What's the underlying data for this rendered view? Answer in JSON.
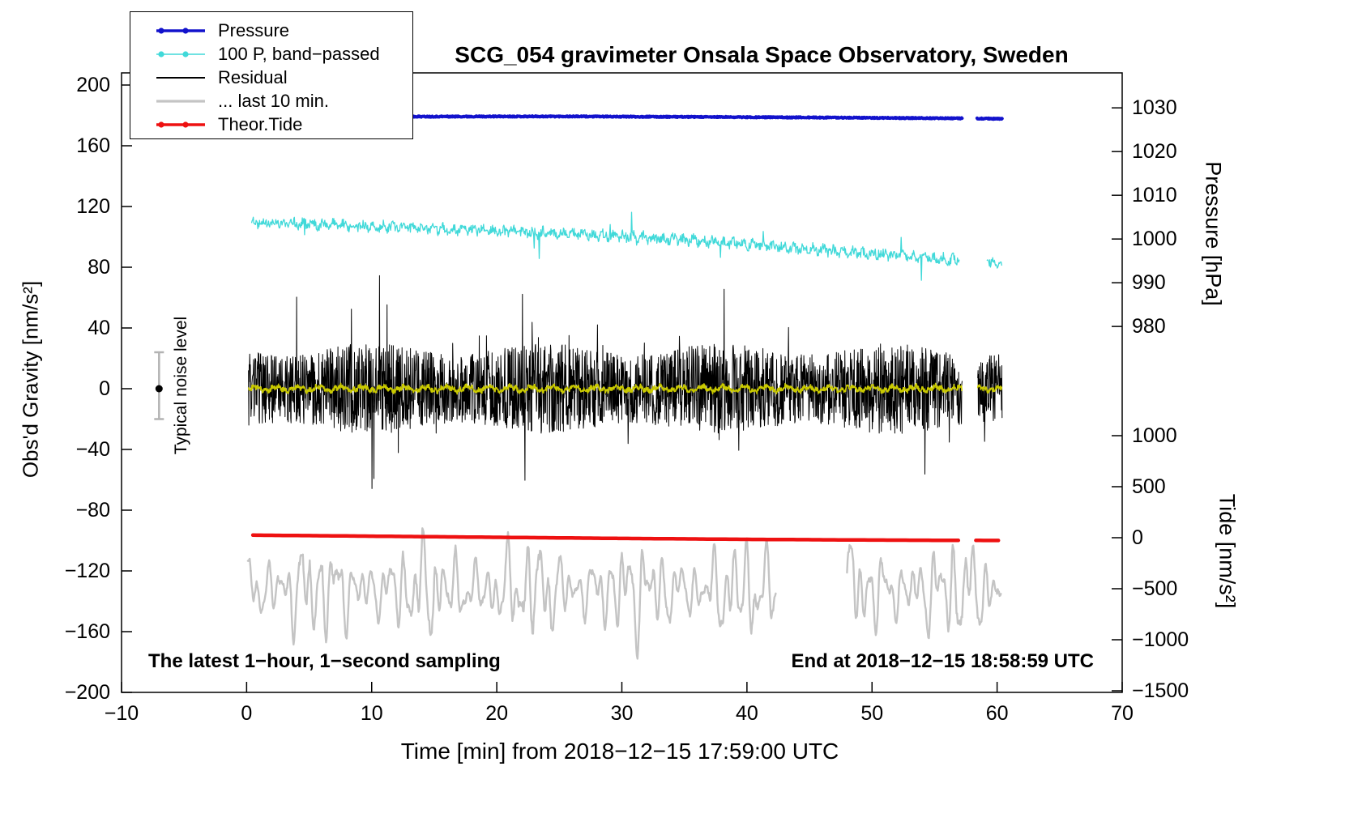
{
  "chart_data": {
    "type": "line",
    "title": "SCG_054 gravimeter Onsala Space Observatory, Sweden",
    "xlabel": "Time [min] from 2018−12−15 17:59:00 UTC",
    "notes": {
      "left": "The latest 1−hour, 1−second sampling",
      "right": "End at 2018−12−15 18:58:59 UTC"
    },
    "noise_marker": {
      "label": "Typical noise level",
      "x": -7,
      "y": 0,
      "err_up": 24,
      "err_down": 20,
      "bar_color": "#b3b3b3",
      "dot_color": "#000000"
    },
    "x_axis": {
      "label": "Time [min] from 2018−12−15 17:59:00 UTC",
      "range": [
        -10,
        70
      ],
      "ticks": [
        -10,
        0,
        10,
        20,
        30,
        40,
        50,
        60,
        70
      ],
      "tick_labels": [
        "−10",
        "0",
        "10",
        "20",
        "30",
        "40",
        "50",
        "60",
        "70"
      ]
    },
    "axes": [
      {
        "id": "gravity",
        "side": "left",
        "label": "Obs'd Gravity [nm/s²]",
        "box_range": [
          -200,
          208
        ],
        "ticks": [
          200,
          160,
          120,
          80,
          40,
          0,
          -40,
          -80,
          -120,
          -160,
          -200
        ],
        "tick_labels": [
          "200",
          "160",
          "120",
          "80",
          "40",
          "0",
          "−40",
          "−80",
          "−120",
          "−160",
          "−200"
        ]
      },
      {
        "id": "pressure",
        "side": "right",
        "label": "Pressure [hPa]",
        "box_range": [
          896.3,
          1038.0
        ],
        "ticks": [
          1030,
          1020,
          1010,
          1000,
          990,
          980
        ],
        "tick_labels": [
          "1030",
          "1020",
          "1010",
          "1000",
          "990",
          "980"
        ]
      },
      {
        "id": "tide",
        "side": "right",
        "label": "Tide [nm/s²]",
        "box_range": [
          -1515.9,
          4555.6
        ],
        "ticks": [
          1000,
          500,
          0,
          -500,
          -1000,
          -1500
        ],
        "tick_labels": [
          "1000",
          "500",
          "0",
          "−500",
          "−1000",
          "−1500"
        ]
      }
    ],
    "legend": {
      "items": [
        {
          "label": "Pressure",
          "color": "#1212cc",
          "marker": "dot-line",
          "lw": 3.5
        },
        {
          "label": "100 P, band−passed",
          "color": "#41d9d9",
          "marker": "dot-line",
          "lw": 1.6
        },
        {
          "label": "Residual",
          "color": "#000000",
          "marker": "line",
          "lw": 2
        },
        {
          "label": "... last 10 min.",
          "color": "#c4c4c4",
          "marker": "line",
          "lw": 3.2
        },
        {
          "label": "Theor.Tide",
          "color": "#ee1111",
          "marker": "dot-line",
          "lw": 3.5
        }
      ]
    },
    "series": [
      {
        "name": "last-10-min",
        "axis": "gravity",
        "color": "#c4c4c4",
        "width": 2.4,
        "step": 0.05,
        "seed": 66,
        "noise": 3,
        "dist": "uniform",
        "sines": [
          {
            "amp": 17,
            "period": 0.83
          },
          {
            "amp": 14,
            "period": 1.37
          },
          {
            "amp": 9,
            "period": 2.31
          },
          {
            "amp": 8,
            "period": 0.53
          }
        ],
        "am": {
          "period": 8.5,
          "min": 0.5
        },
        "baseline": [
          [
            0,
            -132
          ],
          [
            61,
            -133
          ]
        ],
        "segments": [
          [
            0.1,
            42.3
          ],
          [
            48.0,
            60.3
          ]
        ]
      },
      {
        "name": "theor-tide",
        "axis": "tide",
        "color": "#ee1111",
        "width": 4.5,
        "step": 0.3,
        "seed": 55,
        "noise": 0,
        "baseline": [
          [
            0.5,
            25
          ],
          [
            10,
            15
          ],
          [
            20,
            4
          ],
          [
            30,
            -7
          ],
          [
            40,
            -16
          ],
          [
            50,
            -23
          ],
          [
            57.1,
            -26
          ],
          [
            58.3,
            -26.5
          ],
          [
            60.3,
            -27
          ]
        ],
        "segments": [
          [
            0.5,
            57.1
          ],
          [
            58.3,
            60.3
          ]
        ]
      },
      {
        "name": "pressure-bandpassed",
        "axis": "gravity",
        "color": "#41d9d9",
        "width": 1.3,
        "step": 0.045,
        "seed": 22,
        "noise": 3,
        "dist": "uniform",
        "spike_prob": 0.012,
        "spike_amp": 14,
        "sines": [
          {
            "amp": 1.6,
            "period": 0.8
          }
        ],
        "baseline": [
          [
            0.4,
            110
          ],
          [
            4,
            109
          ],
          [
            8,
            107.5
          ],
          [
            12,
            106.5
          ],
          [
            16,
            105
          ],
          [
            20,
            104
          ],
          [
            24,
            102.5
          ],
          [
            28,
            101
          ],
          [
            32,
            99.5
          ],
          [
            36,
            97.5
          ],
          [
            40,
            95
          ],
          [
            44,
            92.5
          ],
          [
            48,
            90
          ],
          [
            52,
            87.5
          ],
          [
            55,
            86
          ],
          [
            57,
            84.5
          ],
          [
            59.2,
            83.5
          ],
          [
            60.4,
            83
          ]
        ],
        "segments": [
          [
            0.4,
            57.0
          ],
          [
            59.2,
            60.4
          ]
        ]
      },
      {
        "name": "pressure",
        "axis": "pressure",
        "color": "#1212cc",
        "width": 4,
        "step": 0.04,
        "seed": 11,
        "noise": 0.12,
        "dist": "uniform",
        "baseline": [
          [
            0,
            1027.85
          ],
          [
            12,
            1028.0
          ],
          [
            25,
            1028.05
          ],
          [
            38,
            1027.9
          ],
          [
            48,
            1027.75
          ],
          [
            57.2,
            1027.6
          ],
          [
            58.4,
            1027.55
          ],
          [
            60.4,
            1027.5
          ]
        ],
        "segments": [
          [
            0.2,
            57.2
          ],
          [
            58.4,
            60.4
          ]
        ]
      },
      {
        "name": "residual",
        "axis": "gravity",
        "color": "#000000",
        "width": 1,
        "step": 0.025,
        "seed": 33,
        "noise": 30,
        "dist": "uniform",
        "spike_prob": 0.03,
        "spike_amp": 55,
        "am": {
          "period": 14,
          "min": 0.75
        },
        "baseline": [
          [
            0,
            0
          ],
          [
            61,
            0
          ]
        ],
        "segments": [
          [
            0.15,
            57.2
          ],
          [
            58.45,
            60.4
          ]
        ]
      },
      {
        "name": "residual-filtered",
        "axis": "gravity",
        "color": "#c9c900",
        "width": 1.6,
        "step": 0.03,
        "seed": 44,
        "noise": 1.5,
        "dist": "uniform",
        "sines": [
          {
            "amp": 1.3,
            "period": 1.7
          },
          {
            "amp": 0.8,
            "period": 0.5
          }
        ],
        "baseline": [
          [
            0,
            0
          ],
          [
            61,
            0
          ]
        ],
        "segments": [
          [
            0.15,
            57.2
          ],
          [
            58.45,
            60.4
          ]
        ]
      }
    ]
  }
}
